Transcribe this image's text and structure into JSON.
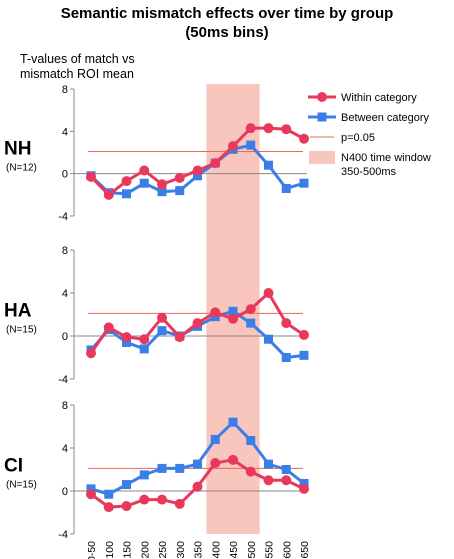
{
  "title_line1": "Semantic mismatch effects over time by group",
  "title_line2": "(50ms bins)",
  "subtitle_line1": "T-values of match vs",
  "subtitle_line2": "mismatch ROI mean",
  "colors": {
    "within": "#e8395c",
    "between": "#3a7ee8",
    "threshold": "#e86a5a",
    "window": "#f9c6be",
    "axis": "#888888"
  },
  "legend": {
    "within": "Within category",
    "between": "Between category",
    "threshold": "p=0.05",
    "window_line1": "N400 time window",
    "window_line2": "350-500ms"
  },
  "chart_data": {
    "type": "line",
    "title": "Semantic mismatch effects over time by group (50ms bins)",
    "ylabel": "T-values of match vs mismatch ROI mean",
    "categories": [
      "0-50",
      "50-100",
      "100-150",
      "150-200",
      "200-250",
      "250-300",
      "300-350",
      "350-400",
      "400-450",
      "450-500",
      "500-550",
      "550-600",
      "600-650"
    ],
    "threshold": 2.1,
    "highlight": {
      "from": "350-400",
      "to": "450-500",
      "label": "N400 time window 350-500ms"
    },
    "yticks": [
      -4,
      0,
      4,
      8
    ],
    "ylim": [
      -4,
      8
    ],
    "legend_position": "top-right",
    "panels": [
      {
        "group": "NH",
        "n": "(N=12)",
        "series": [
          {
            "name": "Within category",
            "values": [
              -0.3,
              -2.0,
              -0.7,
              0.3,
              -1.0,
              -0.4,
              0.3,
              1.0,
              2.6,
              4.3,
              4.3,
              4.2,
              3.3
            ]
          },
          {
            "name": "Between category",
            "values": [
              -0.2,
              -1.8,
              -1.9,
              -0.9,
              -1.7,
              -1.6,
              -0.2,
              1.0,
              2.3,
              2.7,
              0.8,
              -1.4,
              -0.9
            ]
          }
        ]
      },
      {
        "group": "HA",
        "n": "(N=15)",
        "series": [
          {
            "name": "Within category",
            "values": [
              -1.6,
              0.8,
              -0.1,
              -0.3,
              1.7,
              -0.1,
              1.2,
              2.2,
              1.6,
              2.5,
              4.0,
              1.2,
              0.1
            ]
          },
          {
            "name": "Between category",
            "values": [
              -1.3,
              0.6,
              -0.6,
              -1.2,
              0.5,
              0.0,
              0.9,
              1.8,
              2.3,
              1.2,
              -0.3,
              -2.0,
              -1.8
            ]
          }
        ]
      },
      {
        "group": "CI",
        "n": "(N=15)",
        "series": [
          {
            "name": "Within category",
            "values": [
              -0.3,
              -1.5,
              -1.4,
              -0.8,
              -0.8,
              -1.2,
              0.4,
              2.6,
              2.9,
              1.8,
              1.0,
              1.0,
              0.2
            ]
          },
          {
            "name": "Between category",
            "values": [
              0.2,
              -0.3,
              0.6,
              1.5,
              2.1,
              2.1,
              2.5,
              4.8,
              6.4,
              4.7,
              2.5,
              2.0,
              0.7
            ]
          }
        ]
      }
    ]
  }
}
